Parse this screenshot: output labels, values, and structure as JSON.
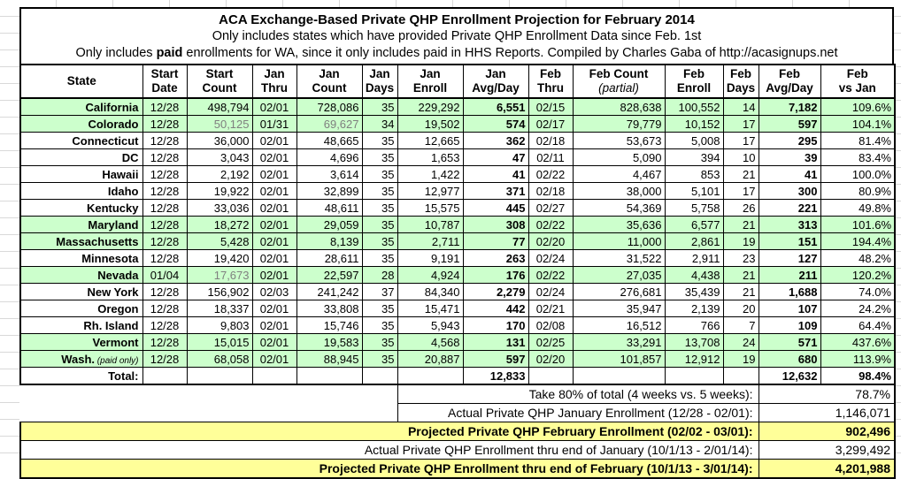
{
  "title": {
    "line1": "ACA Exchange-Based Private QHP Enrollment Projection for February 2014",
    "line2": "Only includes states which have provided Private QHP Enrollment Data since Feb. 1st",
    "line3_pre": "Only includes ",
    "line3_bold": "paid",
    "line3_post": " enrollments for WA, since it only includes paid in HHS Reports. Compiled by Charles Gaba of http://acasignups.net"
  },
  "table": {
    "columns": [
      {
        "key": "state",
        "line1": "State",
        "line2": ""
      },
      {
        "key": "start_date",
        "line1": "Start",
        "line2": "Date"
      },
      {
        "key": "start_count",
        "line1": "Start",
        "line2": "Count"
      },
      {
        "key": "jan_thru",
        "line1": "Jan",
        "line2": "Thru"
      },
      {
        "key": "jan_count",
        "line1": "Jan",
        "line2": "Count"
      },
      {
        "key": "jan_days",
        "line1": "Jan",
        "line2": "Days"
      },
      {
        "key": "jan_enroll",
        "line1": "Jan",
        "line2": "Enroll"
      },
      {
        "key": "jan_avg_day",
        "line1": "Jan",
        "line2": "Avg/Day"
      },
      {
        "key": "feb_thru",
        "line1": "Feb",
        "line2": "Thru"
      },
      {
        "key": "feb_count",
        "line1": "Feb Count",
        "line2": "(partial)",
        "line2_italic": true
      },
      {
        "key": "feb_enroll",
        "line1": "Feb",
        "line2": "Enroll"
      },
      {
        "key": "feb_days",
        "line1": "Feb",
        "line2": "Days"
      },
      {
        "key": "feb_avg_day",
        "line1": "Feb",
        "line2": "Avg/Day"
      },
      {
        "key": "feb_vs_jan",
        "line1": "Feb",
        "line2": "vs Jan"
      }
    ],
    "rows": [
      {
        "state": "California",
        "start_date": "12/28",
        "start_count": "498,794",
        "jan_thru": "02/01",
        "jan_count": "728,086",
        "jan_days": "35",
        "jan_enroll": "229,292",
        "jan_avg_day": "6,551",
        "feb_thru": "02/15",
        "feb_count": "828,638",
        "feb_enroll": "100,552",
        "feb_days": "14",
        "feb_avg_day": "7,182",
        "feb_vs_jan": "109.6%",
        "green": true
      },
      {
        "state": "Colorado",
        "start_date": "12/28",
        "start_count": "50,125",
        "jan_thru": "01/31",
        "jan_count": "69,627",
        "jan_days": "34",
        "jan_enroll": "19,502",
        "jan_avg_day": "574",
        "feb_thru": "02/17",
        "feb_count": "79,779",
        "feb_enroll": "10,152",
        "feb_days": "17",
        "feb_avg_day": "597",
        "feb_vs_jan": "104.1%",
        "green": true,
        "gray": [
          "start_count",
          "jan_count"
        ]
      },
      {
        "state": "Connecticut",
        "start_date": "12/28",
        "start_count": "36,000",
        "jan_thru": "02/01",
        "jan_count": "48,665",
        "jan_days": "35",
        "jan_enroll": "12,665",
        "jan_avg_day": "362",
        "feb_thru": "02/18",
        "feb_count": "53,673",
        "feb_enroll": "5,008",
        "feb_days": "17",
        "feb_avg_day": "295",
        "feb_vs_jan": "81.4%",
        "green": false
      },
      {
        "state": "DC",
        "start_date": "12/28",
        "start_count": "3,043",
        "jan_thru": "02/01",
        "jan_count": "4,696",
        "jan_days": "35",
        "jan_enroll": "1,653",
        "jan_avg_day": "47",
        "feb_thru": "02/11",
        "feb_count": "5,090",
        "feb_enroll": "394",
        "feb_days": "10",
        "feb_avg_day": "39",
        "feb_vs_jan": "83.4%",
        "green": false
      },
      {
        "state": "Hawaii",
        "start_date": "12/28",
        "start_count": "2,192",
        "jan_thru": "02/01",
        "jan_count": "3,614",
        "jan_days": "35",
        "jan_enroll": "1,422",
        "jan_avg_day": "41",
        "feb_thru": "02/22",
        "feb_count": "4,467",
        "feb_enroll": "853",
        "feb_days": "21",
        "feb_avg_day": "41",
        "feb_vs_jan": "100.0%",
        "green": false
      },
      {
        "state": "Idaho",
        "start_date": "12/28",
        "start_count": "19,922",
        "jan_thru": "02/01",
        "jan_count": "32,899",
        "jan_days": "35",
        "jan_enroll": "12,977",
        "jan_avg_day": "371",
        "feb_thru": "02/18",
        "feb_count": "38,000",
        "feb_enroll": "5,101",
        "feb_days": "17",
        "feb_avg_day": "300",
        "feb_vs_jan": "80.9%",
        "green": false
      },
      {
        "state": "Kentucky",
        "start_date": "12/28",
        "start_count": "33,036",
        "jan_thru": "02/01",
        "jan_count": "48,611",
        "jan_days": "35",
        "jan_enroll": "15,575",
        "jan_avg_day": "445",
        "feb_thru": "02/27",
        "feb_count": "54,369",
        "feb_enroll": "5,758",
        "feb_days": "26",
        "feb_avg_day": "221",
        "feb_vs_jan": "49.8%",
        "green": false
      },
      {
        "state": "Maryland",
        "start_date": "12/28",
        "start_count": "18,272",
        "jan_thru": "02/01",
        "jan_count": "29,059",
        "jan_days": "35",
        "jan_enroll": "10,787",
        "jan_avg_day": "308",
        "feb_thru": "02/22",
        "feb_count": "35,636",
        "feb_enroll": "6,577",
        "feb_days": "21",
        "feb_avg_day": "313",
        "feb_vs_jan": "101.6%",
        "green": true
      },
      {
        "state": "Massachusetts",
        "start_date": "12/28",
        "start_count": "5,428",
        "jan_thru": "02/01",
        "jan_count": "8,139",
        "jan_days": "35",
        "jan_enroll": "2,711",
        "jan_avg_day": "77",
        "feb_thru": "02/20",
        "feb_count": "11,000",
        "feb_enroll": "2,861",
        "feb_days": "19",
        "feb_avg_day": "151",
        "feb_vs_jan": "194.4%",
        "green": true
      },
      {
        "state": "Minnesota",
        "start_date": "12/28",
        "start_count": "19,420",
        "jan_thru": "02/01",
        "jan_count": "28,611",
        "jan_days": "35",
        "jan_enroll": "9,191",
        "jan_avg_day": "263",
        "feb_thru": "02/24",
        "feb_count": "31,522",
        "feb_enroll": "2,911",
        "feb_days": "23",
        "feb_avg_day": "127",
        "feb_vs_jan": "48.2%",
        "green": false
      },
      {
        "state": "Nevada",
        "start_date": "01/04",
        "start_count": "17,673",
        "jan_thru": "02/01",
        "jan_count": "22,597",
        "jan_days": "28",
        "jan_enroll": "4,924",
        "jan_avg_day": "176",
        "feb_thru": "02/22",
        "feb_count": "27,035",
        "feb_enroll": "4,438",
        "feb_days": "21",
        "feb_avg_day": "211",
        "feb_vs_jan": "120.2%",
        "green": true,
        "gray": [
          "start_count"
        ]
      },
      {
        "state": "New York",
        "start_date": "12/28",
        "start_count": "156,902",
        "jan_thru": "02/03",
        "jan_count": "241,242",
        "jan_days": "37",
        "jan_enroll": "84,340",
        "jan_avg_day": "2,279",
        "feb_thru": "02/24",
        "feb_count": "276,681",
        "feb_enroll": "35,439",
        "feb_days": "21",
        "feb_avg_day": "1,688",
        "feb_vs_jan": "74.0%",
        "green": false
      },
      {
        "state": "Oregon",
        "start_date": "12/28",
        "start_count": "18,337",
        "jan_thru": "02/01",
        "jan_count": "33,808",
        "jan_days": "35",
        "jan_enroll": "15,471",
        "jan_avg_day": "442",
        "feb_thru": "02/21",
        "feb_count": "35,947",
        "feb_enroll": "2,139",
        "feb_days": "20",
        "feb_avg_day": "107",
        "feb_vs_jan": "24.2%",
        "green": false
      },
      {
        "state": "Rh. Island",
        "start_date": "12/28",
        "start_count": "9,803",
        "jan_thru": "02/01",
        "jan_count": "15,746",
        "jan_days": "35",
        "jan_enroll": "5,943",
        "jan_avg_day": "170",
        "feb_thru": "02/08",
        "feb_count": "16,512",
        "feb_enroll": "766",
        "feb_days": "7",
        "feb_avg_day": "109",
        "feb_vs_jan": "64.4%",
        "green": false
      },
      {
        "state": "Vermont",
        "start_date": "12/28",
        "start_count": "15,015",
        "jan_thru": "02/01",
        "jan_count": "19,583",
        "jan_days": "35",
        "jan_enroll": "4,568",
        "jan_avg_day": "131",
        "feb_thru": "02/25",
        "feb_count": "33,291",
        "feb_enroll": "13,708",
        "feb_days": "24",
        "feb_avg_day": "571",
        "feb_vs_jan": "437.6%",
        "green": true
      },
      {
        "state": "Wash.",
        "state_note": "(paid only)",
        "start_date": "12/28",
        "start_count": "68,058",
        "jan_thru": "02/01",
        "jan_count": "88,945",
        "jan_days": "35",
        "jan_enroll": "20,887",
        "jan_avg_day": "597",
        "feb_thru": "02/20",
        "feb_count": "101,857",
        "feb_enroll": "12,912",
        "feb_days": "19",
        "feb_avg_day": "680",
        "feb_vs_jan": "113.9%",
        "green": true
      }
    ],
    "total_row": {
      "state": "Total:",
      "start_date": "",
      "start_count": "",
      "jan_thru": "",
      "jan_count": "",
      "jan_days": "",
      "jan_enroll": "",
      "jan_avg_day": "12,833",
      "feb_thru": "",
      "feb_count": "",
      "feb_enroll": "",
      "feb_days": "",
      "feb_avg_day": "12,632",
      "feb_vs_jan": "98.4%"
    },
    "summary_rows": [
      {
        "label": "Take 80% of total (4 weeks vs. 5 weeks):",
        "value": "78.7%",
        "layout": "indent",
        "highlight": false
      },
      {
        "label": "Actual Private QHP January Enrollment (12/28 - 02/01):",
        "value": "1,146,071",
        "layout": "indent",
        "highlight": false
      },
      {
        "label": "Projected Private QHP February Enrollment (02/02 - 03/01):",
        "value": "902,496",
        "layout": "full",
        "highlight": true
      },
      {
        "label": "Actual Private QHP Enrollment thru end of January (10/1/13 - 2/01/14):",
        "value": "3,299,492",
        "layout": "full",
        "highlight": false
      },
      {
        "label": "Projected Private QHP Enrollment thru end of February (10/1/13 - 3/01/14):",
        "value": "4,201,988",
        "layout": "full",
        "highlight": true
      }
    ]
  },
  "colors": {
    "row_highlight_green": "#ccffcc",
    "summary_highlight_yellow": "#ffff99",
    "muted_text_gray": "#7f7f7f",
    "gridline_gray": "#d9d9d9",
    "border_black": "#000000"
  }
}
